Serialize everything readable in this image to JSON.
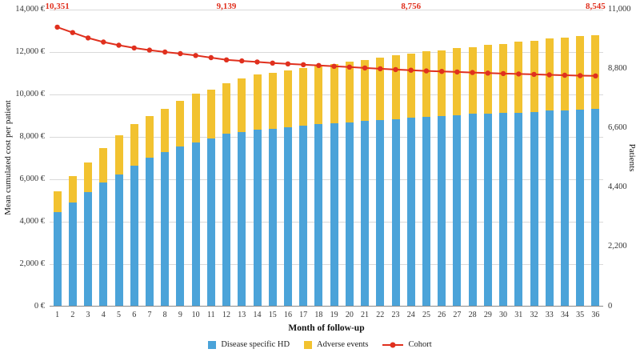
{
  "chart_data": {
    "type": "bar+line",
    "title": "",
    "x": [
      1,
      2,
      3,
      4,
      5,
      6,
      7,
      8,
      9,
      10,
      11,
      12,
      13,
      14,
      15,
      16,
      17,
      18,
      19,
      20,
      21,
      22,
      23,
      24,
      25,
      26,
      27,
      28,
      29,
      30,
      31,
      32,
      33,
      34,
      35,
      36
    ],
    "xlabel": "Month of follow-up",
    "ylabel_left": "Mean cumulated cost per patient",
    "ylabel_right": "Patients",
    "y_left_ticks": [
      "0 €",
      "2,000 €",
      "4,000 €",
      "6,000 €",
      "8,000 €",
      "10,000 €",
      "12,000 €",
      "14,000 €"
    ],
    "y_left_max": 14000,
    "y_right_ticks": [
      "0",
      "2,200",
      "4,400",
      "6,600",
      "8,800",
      "11,000"
    ],
    "y_right_max": 11000,
    "grid": true,
    "legend_position": "bottom",
    "series": [
      {
        "name": "Disease specific  HD",
        "type": "bar-stacked",
        "color": "#4BA3D9",
        "values": [
          4400,
          4850,
          5350,
          5800,
          6200,
          6600,
          7000,
          7250,
          7500,
          7700,
          7900,
          8100,
          8200,
          8300,
          8350,
          8400,
          8500,
          8550,
          8600,
          8650,
          8700,
          8750,
          8800,
          8850,
          8900,
          8950,
          9000,
          9050,
          9050,
          9100,
          9100,
          9150,
          9200,
          9200,
          9250,
          9300
        ]
      },
      {
        "name": "Adverse events",
        "type": "bar-stacked",
        "color": "#F2C230",
        "values": [
          1000,
          1250,
          1400,
          1650,
          1850,
          1950,
          1950,
          2050,
          2150,
          2300,
          2300,
          2400,
          2500,
          2600,
          2650,
          2700,
          2700,
          2800,
          2800,
          2850,
          2900,
          2950,
          3000,
          3050,
          3100,
          3100,
          3150,
          3150,
          3250,
          3250,
          3350,
          3350,
          3400,
          3450,
          3450,
          3450
        ]
      },
      {
        "name": "Cohort",
        "type": "line",
        "axis": "right",
        "color": "#E0301E",
        "values": [
          10351,
          10150,
          9950,
          9800,
          9680,
          9580,
          9500,
          9430,
          9370,
          9300,
          9220,
          9139,
          9100,
          9060,
          9020,
          8990,
          8960,
          8930,
          8900,
          8870,
          8840,
          8810,
          8780,
          8756,
          8730,
          8710,
          8690,
          8670,
          8650,
          8630,
          8615,
          8600,
          8585,
          8570,
          8555,
          8545
        ]
      }
    ],
    "annotations": [
      {
        "month": 1,
        "text": "10,351"
      },
      {
        "month": 12,
        "text": "9,139"
      },
      {
        "month": 24,
        "text": "8,756"
      },
      {
        "month": 36,
        "text": "8,545"
      }
    ]
  }
}
